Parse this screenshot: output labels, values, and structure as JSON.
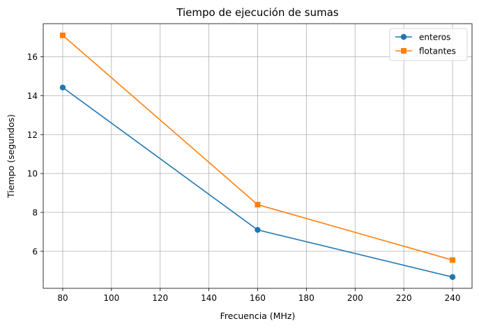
{
  "chart_data": {
    "type": "line",
    "title": "Tiempo de ejecución de sumas",
    "xlabel": "Frecuencia (MHz)",
    "ylabel": "Tiempo (segundos)",
    "x": [
      80,
      160,
      240
    ],
    "series": [
      {
        "name": "enteros",
        "values": [
          14.42,
          7.1,
          4.68
        ],
        "color": "#1f77b4",
        "marker": "circle"
      },
      {
        "name": "flotantes",
        "values": [
          17.1,
          8.4,
          5.55
        ],
        "color": "#ff7f0e",
        "marker": "square"
      }
    ],
    "xlim": [
      72,
      248
    ],
    "ylim": [
      4.1,
      17.7
    ],
    "xticks": [
      80,
      100,
      120,
      140,
      160,
      180,
      200,
      220,
      240
    ],
    "yticks": [
      6,
      8,
      10,
      12,
      14,
      16
    ],
    "grid": true,
    "legend": "top-right"
  }
}
